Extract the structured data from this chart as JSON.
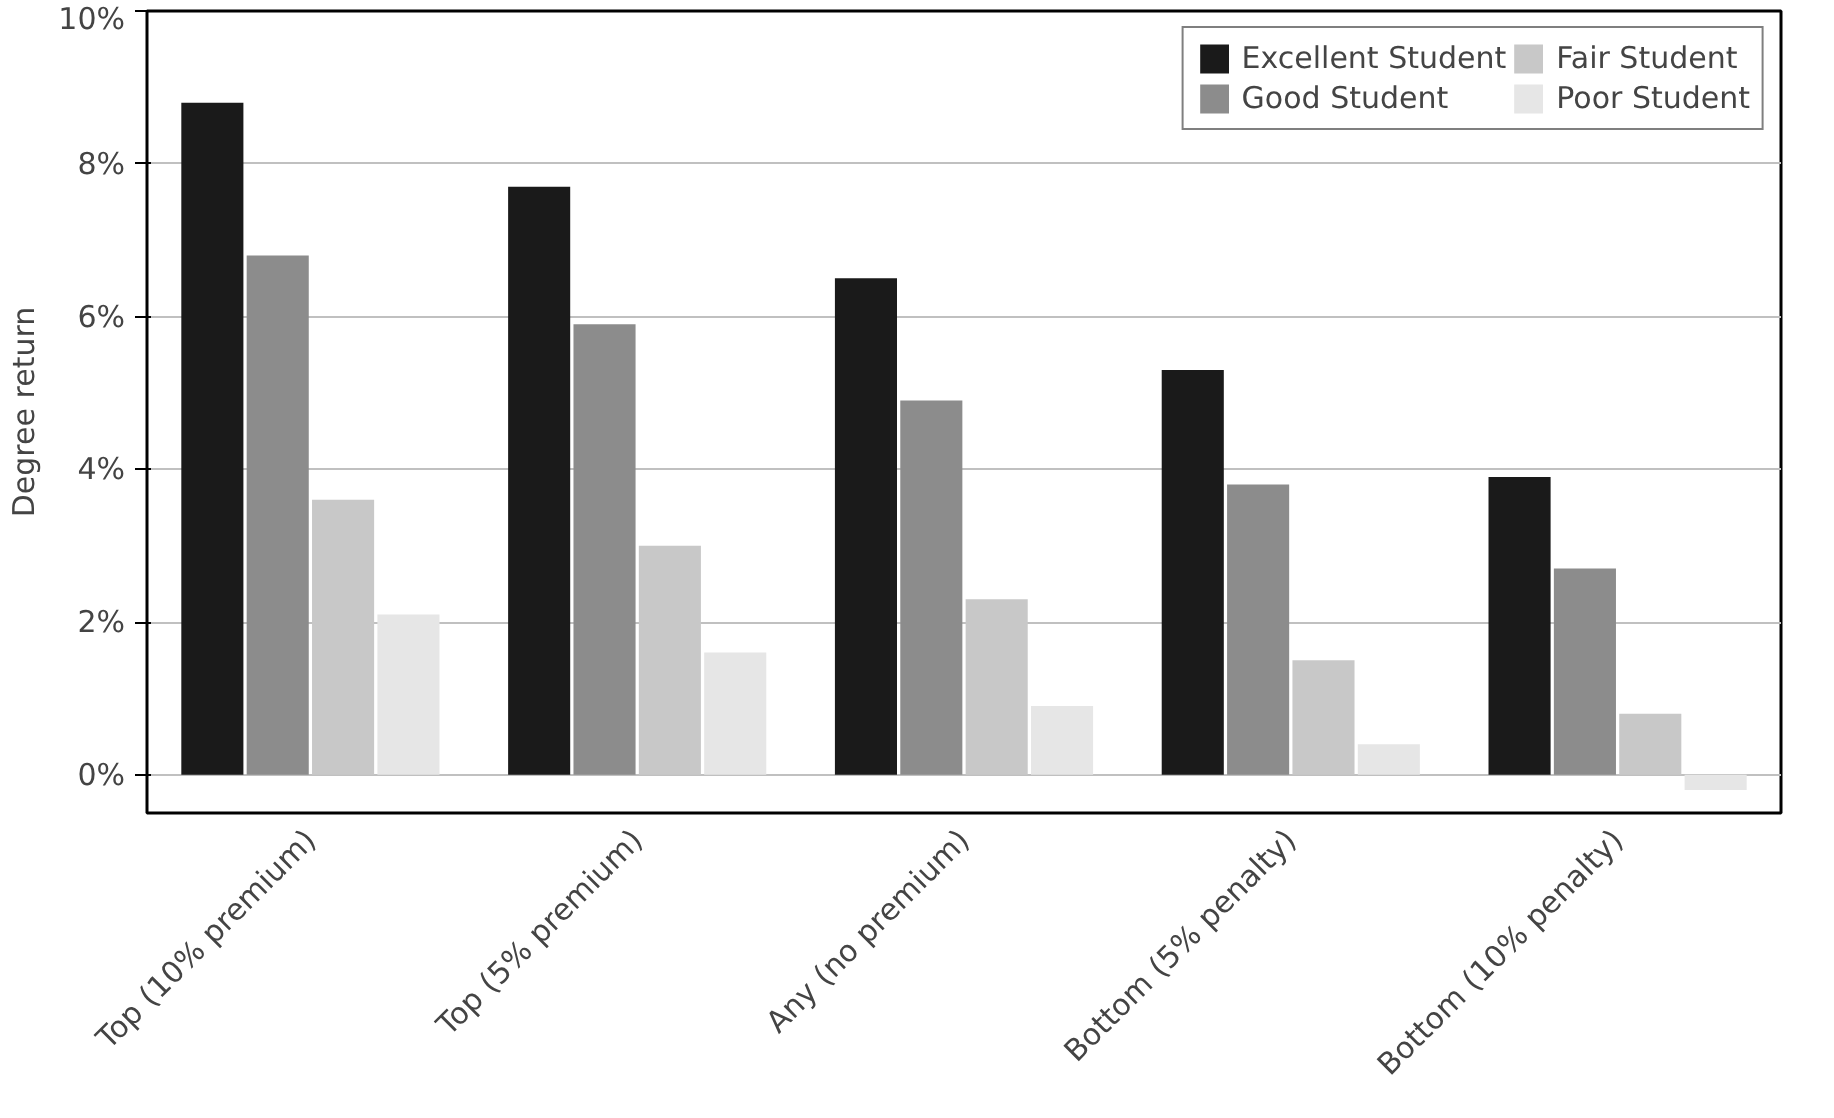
{
  "chart_data": {
    "type": "bar",
    "ylabel": "Degree return",
    "categories": [
      "Top (10% premium)",
      "Top (5% premium)",
      "Any (no premium)",
      "Bottom (5% penalty)",
      "Bottom (10% penalty)"
    ],
    "series": [
      {
        "name": "Excellent Student",
        "color": "#1a1a1a",
        "values": [
          8.8,
          7.7,
          6.5,
          5.3,
          3.9
        ]
      },
      {
        "name": "Good Student",
        "color": "#8c8c8c",
        "values": [
          6.8,
          5.9,
          4.9,
          3.8,
          2.7
        ]
      },
      {
        "name": "Fair Student",
        "color": "#c8c8c8",
        "values": [
          3.6,
          3.0,
          2.3,
          1.5,
          0.8
        ]
      },
      {
        "name": "Poor Student",
        "color": "#e6e6e6",
        "values": [
          2.1,
          1.6,
          0.9,
          0.4,
          -0.2
        ]
      }
    ],
    "ylim": [
      -0.5,
      10
    ],
    "yticks": [
      {
        "value": 0,
        "label": "0%"
      },
      {
        "value": 2,
        "label": "2%"
      },
      {
        "value": 4,
        "label": "4%"
      },
      {
        "value": 6,
        "label": "6%"
      },
      {
        "value": 8,
        "label": "8%"
      },
      {
        "value": 10,
        "label": "10%"
      }
    ],
    "grid": "y",
    "legend": "top right"
  }
}
